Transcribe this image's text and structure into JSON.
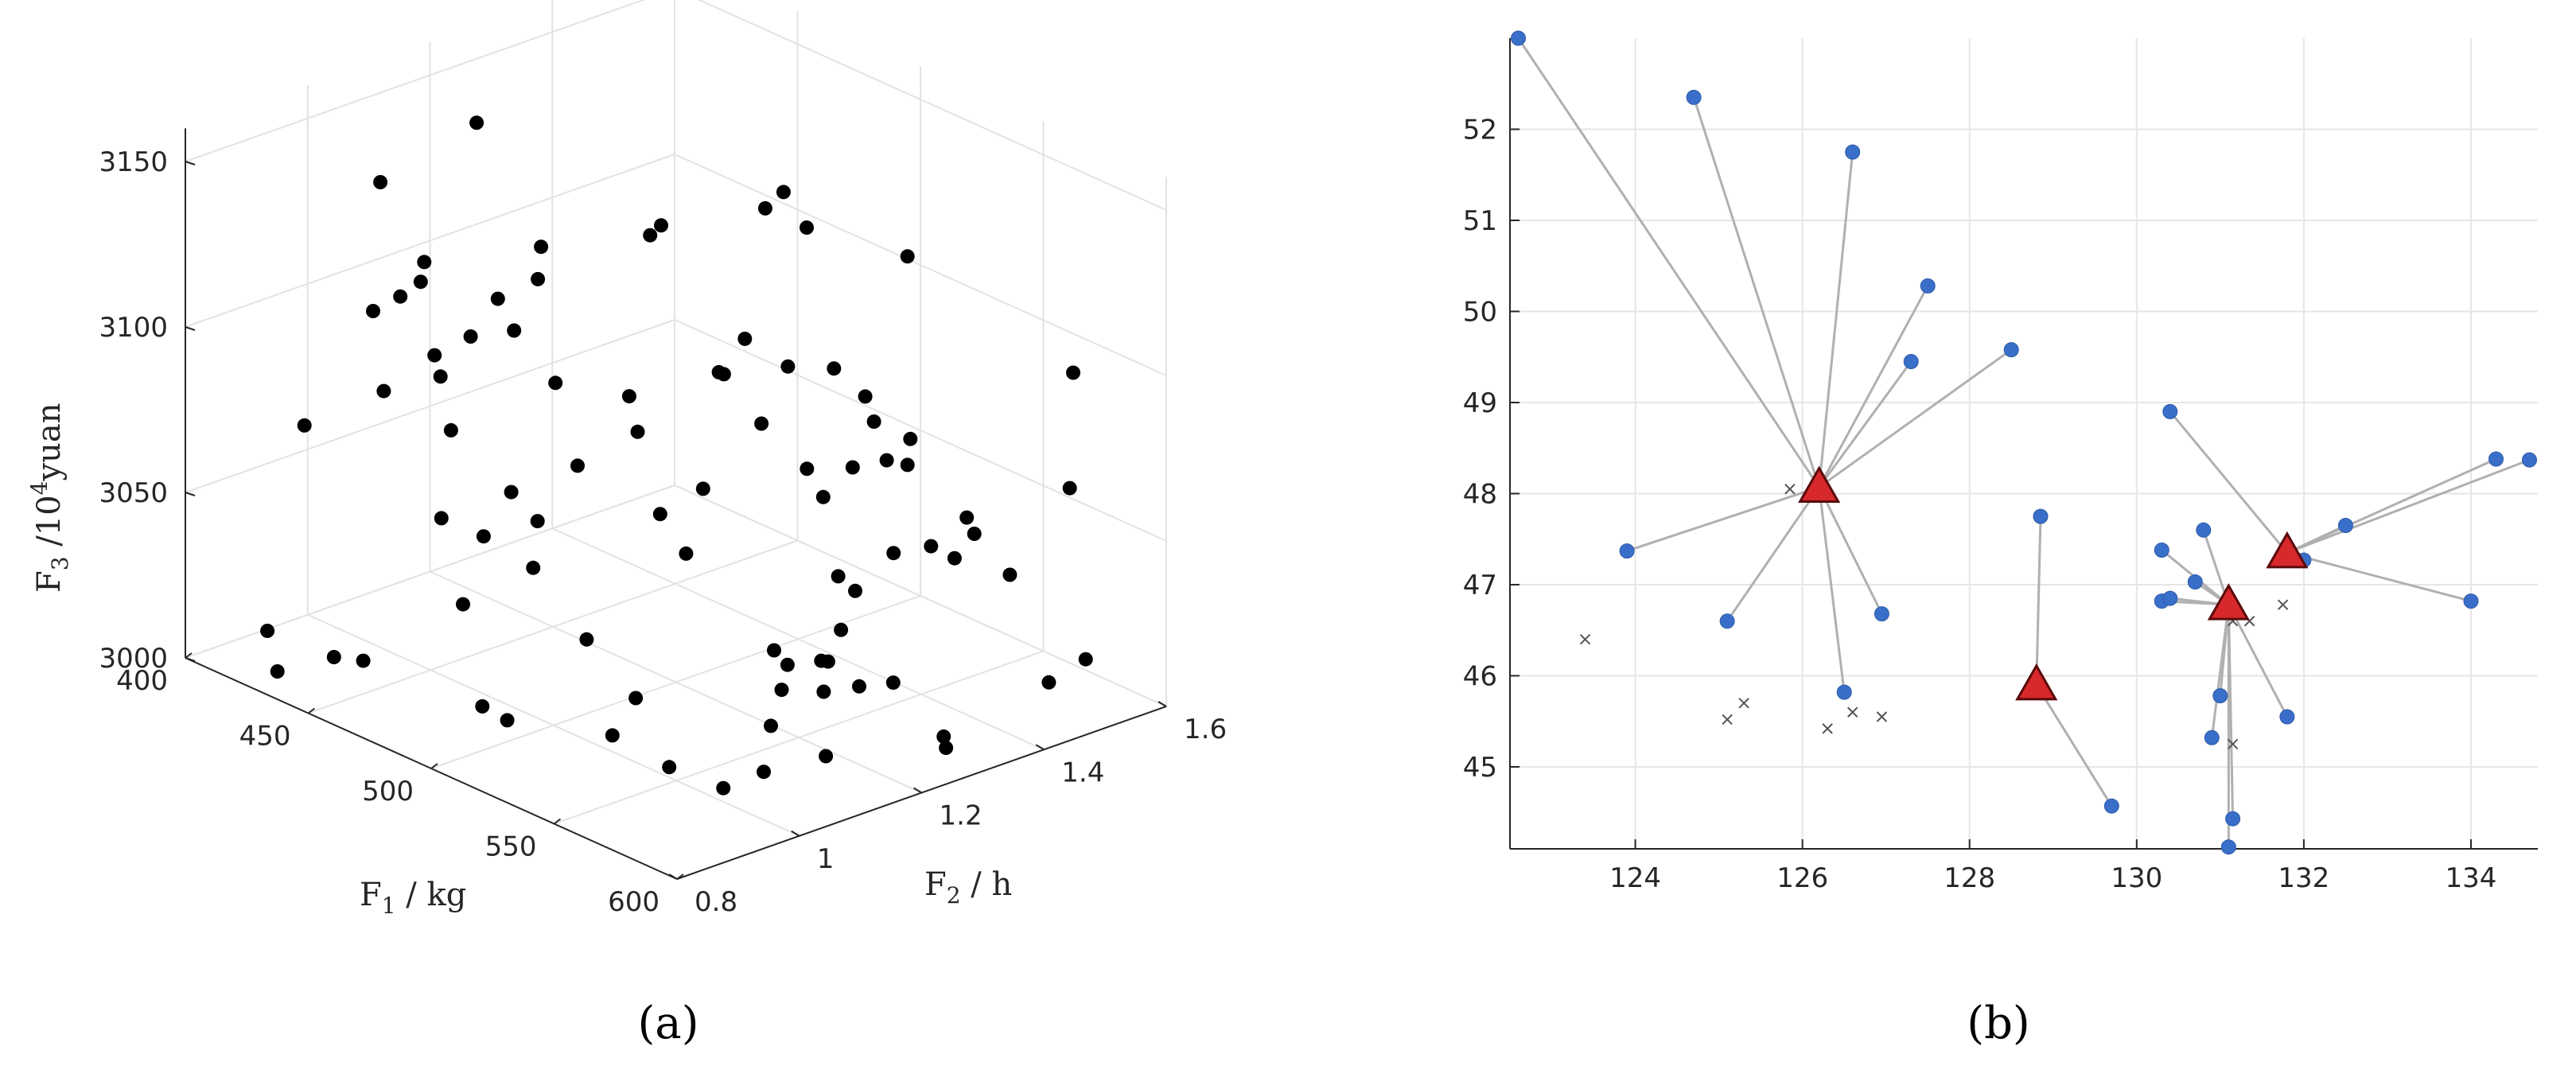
{
  "figure": {
    "panels": [
      {
        "label": "(a)"
      },
      {
        "label": "(b)"
      }
    ]
  },
  "chart_data": [
    {
      "type": "scatter",
      "projection": "3d",
      "axes": {
        "x": {
          "label": "F",
          "label_sub": "1",
          "label_suffix": " / kg",
          "ticks": [
            400,
            450,
            500,
            550,
            600
          ],
          "range": [
            400,
            600
          ]
        },
        "y": {
          "label": "F",
          "label_sub": "2",
          "label_suffix": " / h",
          "ticks": [
            0.8,
            1,
            1.2,
            1.4,
            1.6
          ],
          "tick_labels": [
            "0.8",
            "1",
            "1.2",
            "1.4",
            "1.6"
          ],
          "range": [
            0.8,
            1.6
          ]
        },
        "z": {
          "label": "F",
          "label_sub": "3",
          "label_mid": " /10",
          "label_sup": "4",
          "label_suffix": "yuan",
          "ticks": [
            3000,
            3050,
            3100,
            3150
          ],
          "range": [
            3000,
            3160
          ]
        }
      },
      "grid": true,
      "marker_color": "#000000",
      "series": [
        {
          "points": [
            [
              475,
              0.85,
              3131
            ],
            [
              442,
              0.95,
              3148
            ],
            [
              521,
              0.89,
              3149
            ],
            [
              497,
              1.17,
              3136
            ],
            [
              414,
              1.22,
              3139
            ],
            [
              480,
              1.06,
              3134
            ],
            [
              499,
              1.18,
              3139
            ],
            [
              509,
              1.31,
              3139
            ],
            [
              449,
              0.91,
              3114
            ],
            [
              435,
              1.05,
              3115
            ],
            [
              441,
              1.02,
              3113
            ],
            [
              474,
              0.91,
              3109
            ],
            [
              548,
              1.12,
              3125
            ],
            [
              563,
              1.13,
              3121
            ],
            [
              504,
              1.36,
              3139
            ],
            [
              474,
              1.04,
              3108
            ],
            [
              450,
              1.11,
              3105
            ],
            [
              542,
              1.41,
              3129
            ],
            [
              587,
              1.16,
              3118
            ],
            [
              603,
              1.11,
              3119
            ],
            [
              501,
              1.41,
              3124
            ],
            [
              532,
              1.33,
              3097
            ],
            [
              459,
              0.98,
              3093
            ],
            [
              532,
              1.15,
              3107
            ],
            [
              573,
              1.29,
              3092
            ],
            [
              592,
              1.48,
              3106
            ],
            [
              436,
              0.85,
              3079
            ],
            [
              421,
              1.04,
              3072
            ],
            [
              520,
              1.19,
              3101
            ],
            [
              562,
              1.24,
              3083
            ],
            [
              491,
              1.16,
              3086
            ],
            [
              461,
              1.16,
              3080
            ],
            [
              424,
              1.17,
              3081
            ],
            [
              531,
              1.12,
              3074
            ],
            [
              516,
              1.11,
              3062
            ],
            [
              606,
              1.13,
              3079
            ],
            [
              576,
              1.16,
              3060
            ],
            [
              609,
              1.25,
              3078
            ],
            [
              613,
              1.39,
              3084
            ],
            [
              555,
              1.22,
              3073
            ],
            [
              586,
              1.33,
              3070
            ],
            [
              569,
              1.34,
              3055
            ],
            [
              470,
              1.16,
              3058
            ],
            [
              416,
              1.17,
              3050
            ],
            [
              432,
              1.09,
              3034
            ],
            [
              489,
              0.93,
              3058
            ],
            [
              541,
              1.38,
              3069
            ],
            [
              602,
              1.06,
              3059
            ],
            [
              591,
              1.29,
              3062
            ],
            [
              616,
              1.28,
              3066
            ],
            [
              500,
              1.34,
              3069
            ],
            [
              539,
              0.81,
              3073
            ],
            [
              594,
              1.06,
              3047
            ],
            [
              590,
              1.08,
              3035
            ],
            [
              568,
              1.22,
              3049
            ],
            [
              539,
              1.06,
              3061
            ],
            [
              521,
              1.33,
              3063
            ],
            [
              542,
              1.41,
              3066
            ],
            [
              597,
              1.11,
              3037
            ],
            [
              612,
              1.42,
              3030
            ],
            [
              588,
              0.99,
              3016
            ],
            [
              562,
              0.94,
              3012
            ],
            [
              481,
              0.96,
              3002
            ],
            [
              506,
              1.03,
              3026
            ],
            [
              406,
              0.91,
              3003
            ],
            [
              503,
              0.84,
              3048
            ],
            [
              453,
              0.83,
              3016
            ],
            [
              535,
              1.22,
              3020
            ],
            [
              576,
              1.25,
              3022
            ],
            [
              597,
              1.42,
              3018
            ],
            [
              571,
              1.07,
              3019
            ],
            [
              553,
              1.16,
              3018
            ],
            [
              590,
              1.28,
              3005
            ],
            [
              566,
              1.18,
              3001
            ],
            [
              521,
              1.05,
              3012
            ],
            [
              519,
              1.02,
              3002
            ],
            [
              445,
              0.91,
              3007
            ],
            [
              584,
              0.94,
              3013
            ],
            [
              604,
              1.22,
              3017
            ],
            [
              533,
              1.25,
              3013
            ],
            [
              425,
              0.85,
              3001
            ],
            [
              516,
              0.86,
              3016
            ],
            [
              443,
              1.16,
              3041
            ],
            [
              496,
              0.99,
              3061
            ],
            [
              477,
              1.23,
              3066
            ],
            [
              552,
              1.24,
              3021
            ]
          ]
        }
      ]
    },
    {
      "type": "scatter",
      "xlim": [
        122.5,
        134.8
      ],
      "ylim": [
        44.1,
        53.0
      ],
      "xticks": [
        124,
        126,
        128,
        130,
        132,
        134
      ],
      "yticks": [
        45,
        46,
        47,
        48,
        49,
        50,
        51,
        52
      ],
      "grid": true,
      "colors": {
        "points": "#3a6fc9",
        "centers": "#d7282c",
        "links": "#b0b0b0",
        "crosses": "#555555"
      },
      "series": [
        {
          "marker": "circle",
          "points": [
            [
              122.6,
              53.0
            ],
            [
              124.7,
              52.35
            ],
            [
              126.6,
              51.75
            ],
            [
              127.5,
              50.28
            ],
            [
              127.3,
              49.45
            ],
            [
              128.5,
              49.58
            ],
            [
              123.9,
              47.37
            ],
            [
              125.1,
              46.6
            ],
            [
              126.5,
              45.82
            ],
            [
              126.95,
              46.68
            ],
            [
              128.85,
              47.75
            ],
            [
              129.7,
              44.57
            ],
            [
              130.4,
              48.9
            ],
            [
              130.3,
              47.38
            ],
            [
              130.8,
              47.6
            ],
            [
              130.7,
              47.03
            ],
            [
              130.3,
              46.82
            ],
            [
              130.4,
              46.85
            ],
            [
              131.0,
              45.78
            ],
            [
              130.9,
              45.32
            ],
            [
              131.8,
              45.55
            ],
            [
              131.15,
              44.43
            ],
            [
              131.1,
              44.12
            ],
            [
              132.0,
              47.27
            ],
            [
              132.5,
              47.65
            ],
            [
              134.3,
              48.38
            ],
            [
              134.7,
              48.37
            ],
            [
              134.0,
              46.82
            ]
          ]
        },
        {
          "marker": "triangle",
          "points": [
            [
              126.2,
              48.07
            ],
            [
              128.8,
              45.9
            ],
            [
              131.1,
              46.78
            ],
            [
              131.8,
              47.35
            ]
          ]
        },
        {
          "marker": "x",
          "points": [
            [
              123.4,
              46.4
            ],
            [
              125.1,
              45.52
            ],
            [
              125.3,
              45.7
            ],
            [
              126.3,
              45.42
            ],
            [
              126.6,
              45.6
            ],
            [
              126.95,
              45.55
            ],
            [
              125.85,
              48.05
            ],
            [
              131.15,
              46.6
            ],
            [
              131.35,
              46.6
            ],
            [
              131.75,
              46.78
            ],
            [
              131.15,
              45.25
            ]
          ]
        }
      ],
      "links": [
        [
          0,
          0
        ],
        [
          1,
          0
        ],
        [
          2,
          0
        ],
        [
          3,
          0
        ],
        [
          4,
          0
        ],
        [
          5,
          0
        ],
        [
          6,
          0
        ],
        [
          7,
          0
        ],
        [
          8,
          0
        ],
        [
          9,
          0
        ],
        [
          10,
          1
        ],
        [
          11,
          1
        ],
        [
          13,
          2
        ],
        [
          14,
          2
        ],
        [
          15,
          2
        ],
        [
          16,
          2
        ],
        [
          17,
          2
        ],
        [
          18,
          2
        ],
        [
          19,
          2
        ],
        [
          20,
          2
        ],
        [
          21,
          2
        ],
        [
          22,
          2
        ],
        [
          12,
          3
        ],
        [
          23,
          3
        ],
        [
          24,
          3
        ],
        [
          25,
          3
        ],
        [
          26,
          3
        ],
        [
          27,
          3
        ]
      ]
    }
  ]
}
